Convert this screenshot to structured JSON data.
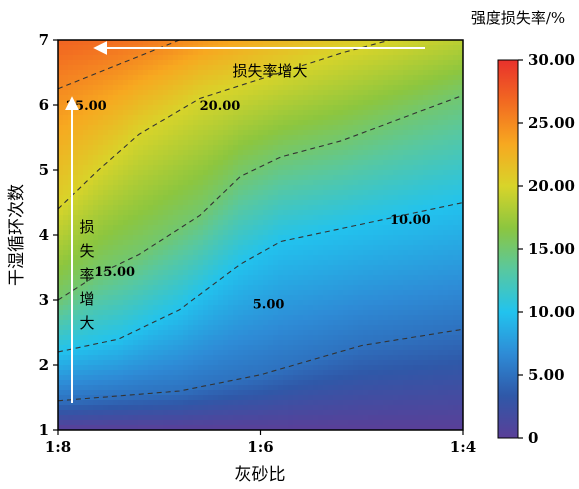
{
  "chart_data": {
    "type": "heatmap",
    "subtype": "filled-contour",
    "title": "",
    "xlabel": "灰砂比",
    "ylabel": "干湿循环次数",
    "x_categories": [
      "1:8",
      "1:6",
      "1:4"
    ],
    "y_ticks": [
      1,
      2,
      3,
      4,
      5,
      6,
      7
    ],
    "ylim": [
      1,
      7
    ],
    "colorbar": {
      "title": "强度损失率/%",
      "range": [
        0,
        30
      ],
      "ticks": [
        "0",
        "5.00",
        "10.00",
        "15.00",
        "20.00",
        "25.00",
        "30.00"
      ],
      "colors": [
        "#5a3f98",
        "#2f58a8",
        "#2e8bd6",
        "#22c3ee",
        "#58c8a0",
        "#8cc63f",
        "#d8d42a",
        "#f7a820",
        "#f26a21",
        "#e8312c"
      ]
    },
    "contours": [
      {
        "level": 5,
        "label": "5.00",
        "points": [
          [
            0,
            1.45
          ],
          [
            0.3,
            1.6
          ],
          [
            0.5,
            1.85
          ],
          [
            0.75,
            2.3
          ],
          [
            1,
            2.55
          ]
        ]
      },
      {
        "level": 10,
        "label": "10.00",
        "points": [
          [
            0,
            2.2
          ],
          [
            0.15,
            2.4
          ],
          [
            0.3,
            2.85
          ],
          [
            0.45,
            3.55
          ],
          [
            0.55,
            3.9
          ],
          [
            0.7,
            4.1
          ],
          [
            0.85,
            4.3
          ],
          [
            1,
            4.5
          ]
        ]
      },
      {
        "level": 15,
        "label": "15.00",
        "points": [
          [
            0,
            3.0
          ],
          [
            0.1,
            3.4
          ],
          [
            0.2,
            3.7
          ],
          [
            0.35,
            4.3
          ],
          [
            0.45,
            4.9
          ],
          [
            0.55,
            5.2
          ],
          [
            0.7,
            5.45
          ],
          [
            0.85,
            5.8
          ],
          [
            1,
            6.15
          ]
        ]
      },
      {
        "level": 20,
        "label": "20.00",
        "points": [
          [
            0,
            4.4
          ],
          [
            0.1,
            5.0
          ],
          [
            0.2,
            5.55
          ],
          [
            0.35,
            6.1
          ],
          [
            0.55,
            6.5
          ],
          [
            0.7,
            6.8
          ],
          [
            0.82,
            7.0
          ]
        ]
      },
      {
        "level": 25,
        "label": "25.00",
        "points": [
          [
            0,
            6.25
          ],
          [
            0.1,
            6.5
          ],
          [
            0.2,
            6.75
          ],
          [
            0.3,
            7.0
          ]
        ]
      }
    ],
    "annotations": {
      "top_arrow_text": "损失率增大",
      "left_arrow_text": [
        "损",
        "失",
        "率",
        "增",
        "大"
      ]
    }
  }
}
